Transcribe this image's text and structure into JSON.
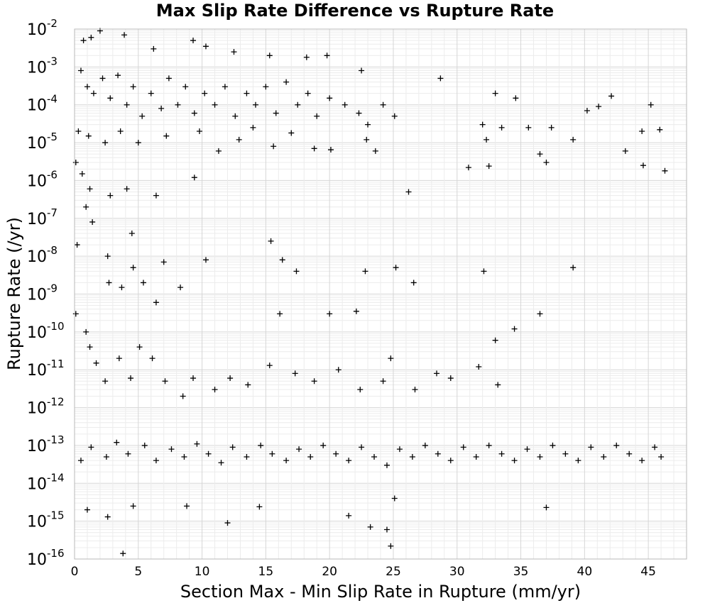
{
  "chart_data": {
    "type": "scatter",
    "title": "Max Slip Rate Difference vs Rupture Rate",
    "xlabel": "Section Max - Min Slip Rate in Rupture (mm/yr)",
    "ylabel": "Rupture Rate (/yr)",
    "xlim": [
      0,
      48
    ],
    "ylim": [
      1e-16,
      0.01
    ],
    "yscale": "log",
    "grid": true,
    "marker": "+",
    "x_ticks": [
      "0",
      "5",
      "10",
      "15",
      "20",
      "25",
      "30",
      "35",
      "40",
      "45"
    ],
    "y_ticks": [
      {
        "base": "10",
        "exp": "-16"
      },
      {
        "base": "10",
        "exp": "-15"
      },
      {
        "base": "10",
        "exp": "-14"
      },
      {
        "base": "10",
        "exp": "-13"
      },
      {
        "base": "10",
        "exp": "-12"
      },
      {
        "base": "10",
        "exp": "-11"
      },
      {
        "base": "10",
        "exp": "-10"
      },
      {
        "base": "10",
        "exp": "-9"
      },
      {
        "base": "10",
        "exp": "-8"
      },
      {
        "base": "10",
        "exp": "-7"
      },
      {
        "base": "10",
        "exp": "-6"
      },
      {
        "base": "10",
        "exp": "-5"
      },
      {
        "base": "10",
        "exp": "-4"
      },
      {
        "base": "10",
        "exp": "-3"
      },
      {
        "base": "10",
        "exp": "-2"
      }
    ],
    "points": [
      [
        0.7,
        0.005
      ],
      [
        1.3,
        0.006
      ],
      [
        2.0,
        0.009
      ],
      [
        3.9,
        0.007
      ],
      [
        6.2,
        0.003
      ],
      [
        9.3,
        0.005
      ],
      [
        10.3,
        0.0035
      ],
      [
        12.5,
        0.0025
      ],
      [
        15.3,
        0.002
      ],
      [
        18.2,
        0.0018
      ],
      [
        19.8,
        0.002
      ],
      [
        22.5,
        0.0008
      ],
      [
        28.7,
        0.0005
      ],
      [
        0.5,
        0.0008
      ],
      [
        1.0,
        0.0003
      ],
      [
        1.5,
        0.0002
      ],
      [
        2.2,
        0.0005
      ],
      [
        2.8,
        0.00015
      ],
      [
        3.4,
        0.0006
      ],
      [
        4.1,
        0.0001
      ],
      [
        4.6,
        0.0003
      ],
      [
        5.3,
        5e-05
      ],
      [
        6.0,
        0.0002
      ],
      [
        6.8,
        8e-05
      ],
      [
        7.4,
        0.0005
      ],
      [
        8.1,
        0.0001
      ],
      [
        8.7,
        0.0003
      ],
      [
        9.4,
        6e-05
      ],
      [
        10.2,
        0.0002
      ],
      [
        11.0,
        0.0001
      ],
      [
        11.8,
        0.0003
      ],
      [
        12.6,
        5e-05
      ],
      [
        13.5,
        0.0002
      ],
      [
        14.2,
        0.0001
      ],
      [
        15.0,
        0.0003
      ],
      [
        15.8,
        6e-05
      ],
      [
        16.6,
        0.0004
      ],
      [
        17.5,
        0.0001
      ],
      [
        18.3,
        0.0002
      ],
      [
        19.0,
        5e-05
      ],
      [
        20.0,
        0.00015
      ],
      [
        21.2,
        0.0001
      ],
      [
        22.3,
        6e-05
      ],
      [
        23.0,
        3e-05
      ],
      [
        24.2,
        0.0001
      ],
      [
        25.1,
        5e-05
      ],
      [
        0.3,
        2e-05
      ],
      [
        1.1,
        1.5e-05
      ],
      [
        2.4,
        1e-05
      ],
      [
        3.6,
        2e-05
      ],
      [
        5.0,
        1e-05
      ],
      [
        7.2,
        1.5e-05
      ],
      [
        9.8,
        2e-05
      ],
      [
        11.3,
        6e-06
      ],
      [
        12.9,
        1.2e-05
      ],
      [
        14.0,
        2.5e-05
      ],
      [
        15.6,
        8e-06
      ],
      [
        17.0,
        1.8e-05
      ],
      [
        18.8,
        7e-06
      ],
      [
        20.1,
        6.5e-06
      ],
      [
        22.9,
        1.2e-05
      ],
      [
        23.6,
        6e-06
      ],
      [
        33.0,
        0.0002
      ],
      [
        34.6,
        0.00015
      ],
      [
        32.0,
        3e-05
      ],
      [
        33.5,
        2.5e-05
      ],
      [
        35.6,
        2.5e-05
      ],
      [
        37.4,
        2.5e-05
      ],
      [
        39.1,
        1.2e-05
      ],
      [
        40.2,
        7e-05
      ],
      [
        41.1,
        9e-05
      ],
      [
        42.1,
        0.00017
      ],
      [
        43.2,
        6e-06
      ],
      [
        44.5,
        2e-05
      ],
      [
        45.2,
        0.0001
      ],
      [
        45.9,
        2.2e-05
      ],
      [
        32.3,
        1.2e-05
      ],
      [
        36.5,
        5e-06
      ],
      [
        30.9,
        2.2e-06
      ],
      [
        32.5,
        2.4e-06
      ],
      [
        37.0,
        3e-06
      ],
      [
        44.6,
        2.5e-06
      ],
      [
        46.3,
        1.8e-06
      ],
      [
        0.1,
        3e-06
      ],
      [
        0.6,
        1.5e-06
      ],
      [
        1.2,
        6e-07
      ],
      [
        0.9,
        2e-07
      ],
      [
        1.4,
        8e-08
      ],
      [
        0.2,
        2e-08
      ],
      [
        2.8,
        4e-07
      ],
      [
        4.1,
        6e-07
      ],
      [
        4.5,
        4e-08
      ],
      [
        6.4,
        4e-07
      ],
      [
        2.6,
        1e-08
      ],
      [
        4.6,
        5e-09
      ],
      [
        7.0,
        7e-09
      ],
      [
        8.3,
        1.5e-09
      ],
      [
        10.3,
        8e-09
      ],
      [
        2.7,
        2e-09
      ],
      [
        3.7,
        1.5e-09
      ],
      [
        5.4,
        2e-09
      ],
      [
        6.4,
        6e-10
      ],
      [
        9.4,
        1.2e-06
      ],
      [
        15.4,
        2.5e-08
      ],
      [
        16.3,
        8e-09
      ],
      [
        17.4,
        4e-09
      ],
      [
        22.8,
        4e-09
      ],
      [
        25.2,
        5e-09
      ],
      [
        26.2,
        5e-07
      ],
      [
        26.6,
        2e-09
      ],
      [
        32.1,
        4e-09
      ],
      [
        39.1,
        5e-09
      ],
      [
        36.5,
        3e-10
      ],
      [
        34.5,
        1.2e-10
      ],
      [
        33.0,
        6e-11
      ],
      [
        20.0,
        3e-10
      ],
      [
        22.1,
        3.5e-10
      ],
      [
        16.1,
        3e-10
      ],
      [
        0.1,
        3e-10
      ],
      [
        0.9,
        1e-10
      ],
      [
        1.2,
        4e-11
      ],
      [
        1.7,
        1.5e-11
      ],
      [
        2.4,
        5e-12
      ],
      [
        3.5,
        2e-11
      ],
      [
        4.4,
        6e-12
      ],
      [
        5.1,
        4e-11
      ],
      [
        6.1,
        2e-11
      ],
      [
        7.1,
        5e-12
      ],
      [
        8.5,
        2e-12
      ],
      [
        9.3,
        6e-12
      ],
      [
        11.0,
        3e-12
      ],
      [
        12.2,
        6e-12
      ],
      [
        13.6,
        4e-12
      ],
      [
        15.3,
        1.3e-11
      ],
      [
        17.3,
        8e-12
      ],
      [
        18.8,
        5e-12
      ],
      [
        20.7,
        1e-11
      ],
      [
        22.4,
        3e-12
      ],
      [
        24.2,
        5e-12
      ],
      [
        24.8,
        2e-11
      ],
      [
        26.7,
        3e-12
      ],
      [
        28.4,
        8e-12
      ],
      [
        29.5,
        6e-12
      ],
      [
        31.7,
        1.2e-11
      ],
      [
        33.2,
        4e-12
      ],
      [
        0.5,
        4e-14
      ],
      [
        1.3,
        9e-14
      ],
      [
        2.5,
        5e-14
      ],
      [
        3.3,
        1.2e-13
      ],
      [
        4.2,
        6e-14
      ],
      [
        5.5,
        1e-13
      ],
      [
        6.4,
        4e-14
      ],
      [
        7.6,
        8e-14
      ],
      [
        8.6,
        5e-14
      ],
      [
        9.6,
        1.1e-13
      ],
      [
        10.5,
        6e-14
      ],
      [
        11.5,
        3.5e-14
      ],
      [
        12.4,
        9e-14
      ],
      [
        13.5,
        5e-14
      ],
      [
        14.6,
        1e-13
      ],
      [
        15.5,
        6e-14
      ],
      [
        16.6,
        4e-14
      ],
      [
        17.6,
        8e-14
      ],
      [
        18.5,
        5e-14
      ],
      [
        19.5,
        1e-13
      ],
      [
        20.5,
        6e-14
      ],
      [
        21.5,
        4e-14
      ],
      [
        22.5,
        9e-14
      ],
      [
        23.5,
        5e-14
      ],
      [
        24.5,
        3e-14
      ],
      [
        25.5,
        8e-14
      ],
      [
        26.5,
        5e-14
      ],
      [
        27.5,
        1e-13
      ],
      [
        28.5,
        6e-14
      ],
      [
        29.5,
        4e-14
      ],
      [
        30.5,
        9e-14
      ],
      [
        31.5,
        5e-14
      ],
      [
        32.5,
        1e-13
      ],
      [
        33.5,
        6e-14
      ],
      [
        34.5,
        4e-14
      ],
      [
        35.5,
        8e-14
      ],
      [
        36.5,
        5e-14
      ],
      [
        37.5,
        1e-13
      ],
      [
        38.5,
        6e-14
      ],
      [
        39.5,
        4e-14
      ],
      [
        40.5,
        9e-14
      ],
      [
        41.5,
        5e-14
      ],
      [
        42.5,
        1e-13
      ],
      [
        43.5,
        6e-14
      ],
      [
        44.5,
        4e-14
      ],
      [
        45.5,
        9e-14
      ],
      [
        46.0,
        5e-14
      ],
      [
        1.0,
        2e-15
      ],
      [
        2.6,
        1.3e-15
      ],
      [
        4.6,
        2.5e-15
      ],
      [
        8.8,
        2.5e-15
      ],
      [
        12.0,
        9e-16
      ],
      [
        14.5,
        2.4e-15
      ],
      [
        21.5,
        1.4e-15
      ],
      [
        23.2,
        7e-16
      ],
      [
        24.5,
        6e-16
      ],
      [
        24.8,
        2.2e-16
      ],
      [
        25.1,
        4e-15
      ],
      [
        37.0,
        2.3e-15
      ],
      [
        3.8,
        1.4e-16
      ]
    ]
  }
}
